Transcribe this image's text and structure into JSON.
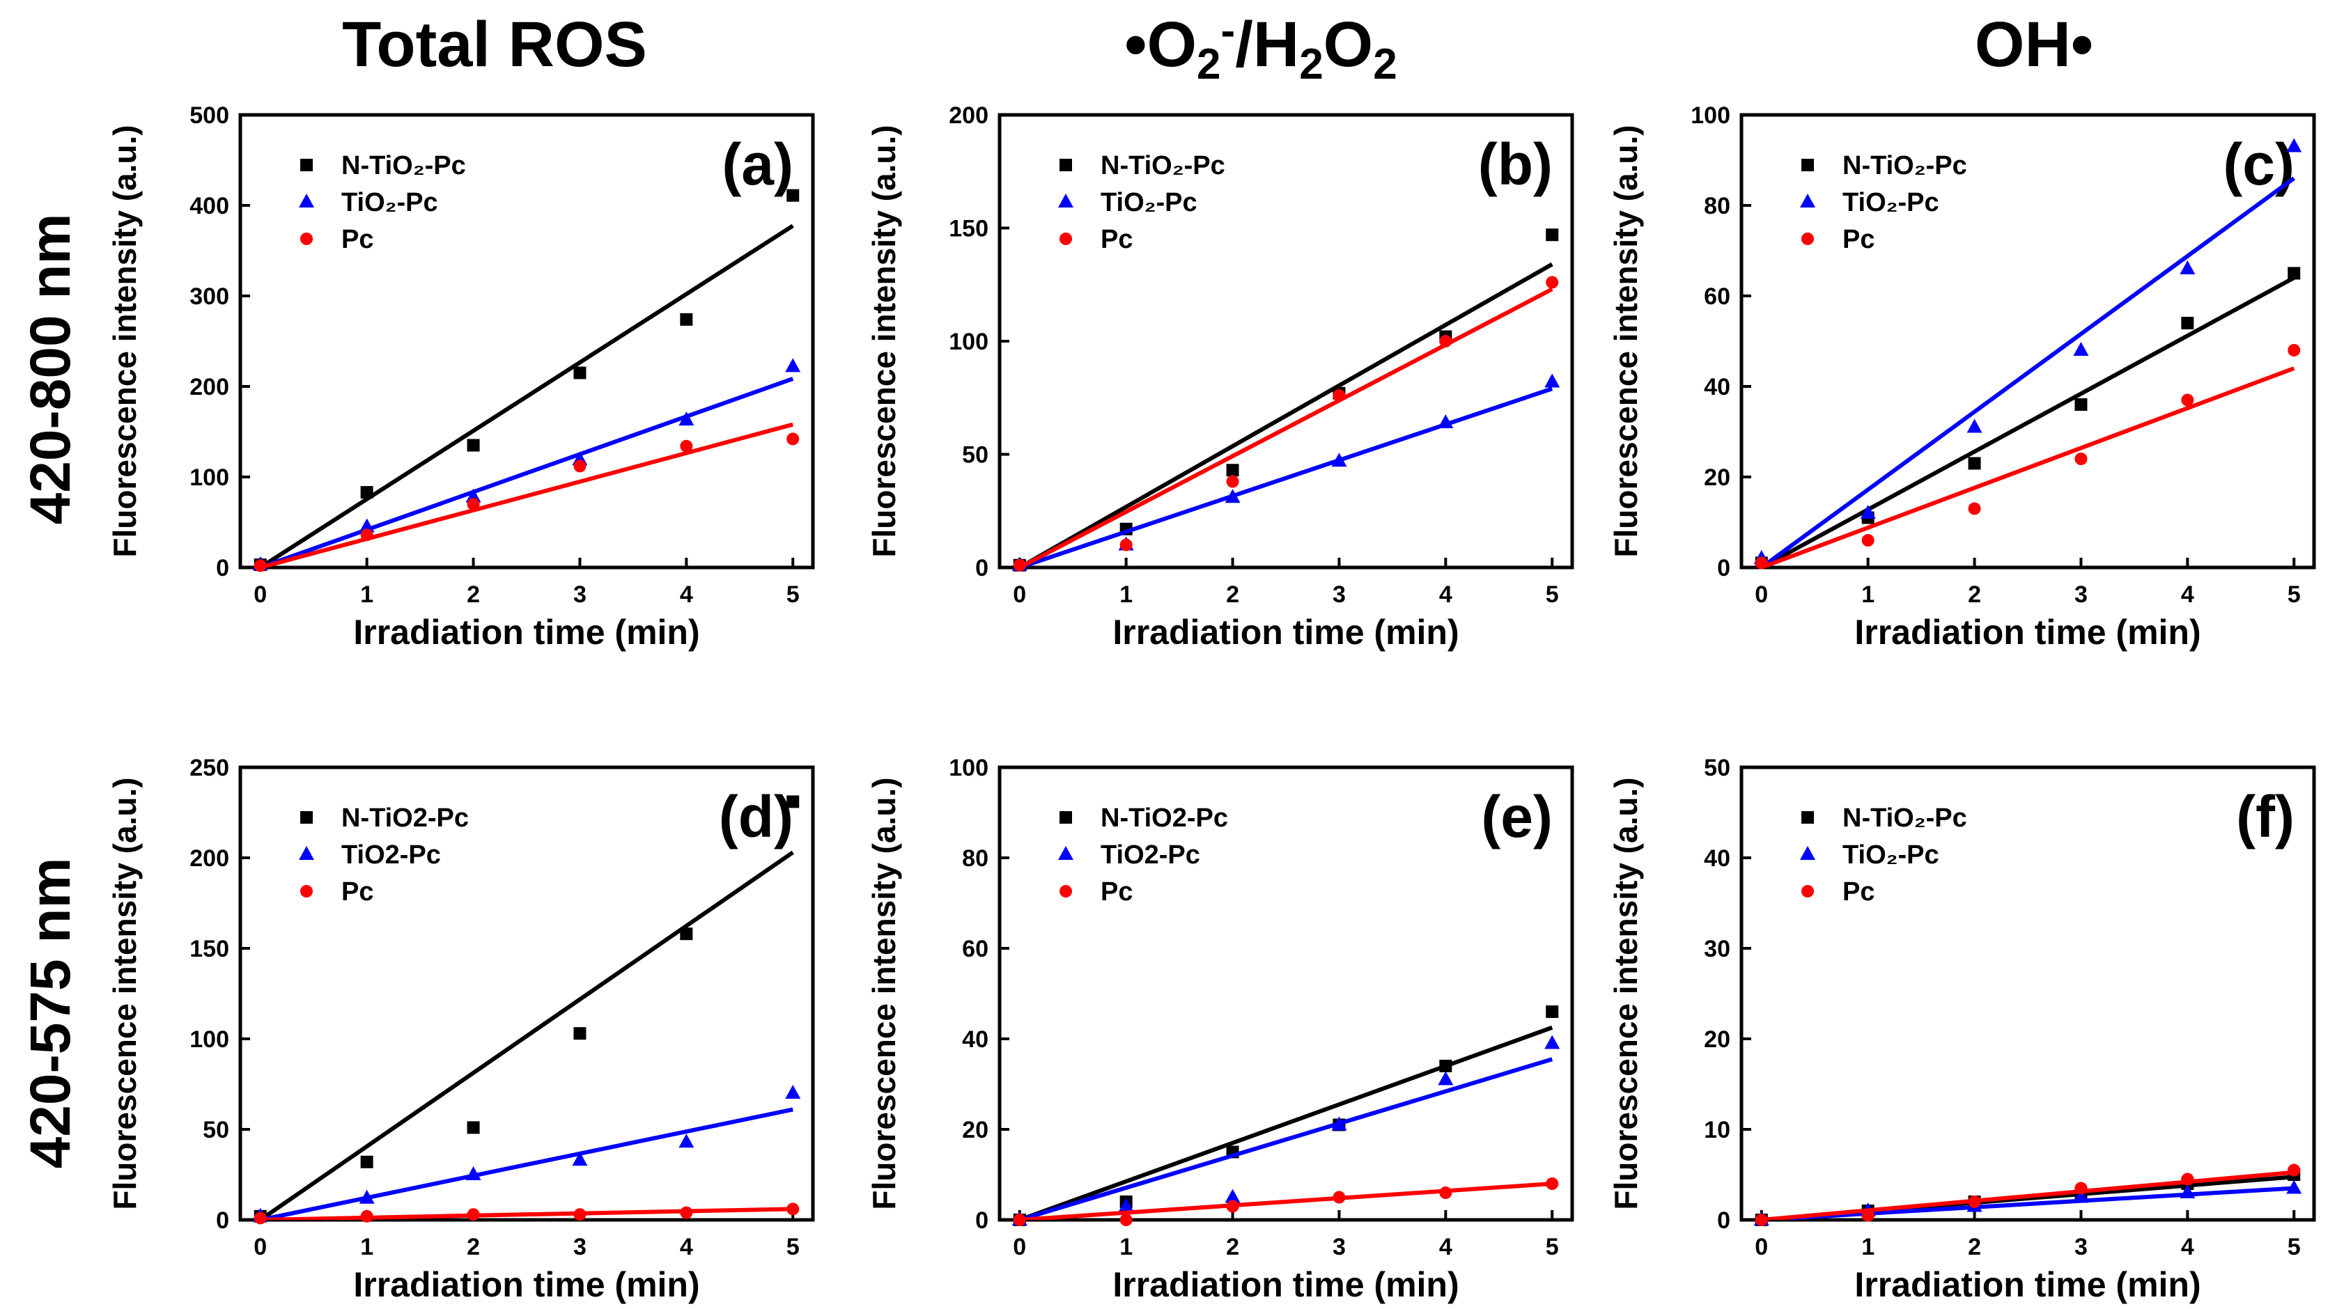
{
  "figure": {
    "column_titles": [
      "Total ROS",
      "•O2-/H2O2",
      "OH•"
    ],
    "row_titles": [
      "420-800 nm",
      "420-575 nm"
    ]
  },
  "colors": {
    "N-TiO2-Pc": "#000000",
    "TiO2-Pc": "#0000ff",
    "Pc": "#ff0000"
  },
  "chart_data": [
    {
      "type": "scatter",
      "panel_label": "(a)",
      "xlabel": "Irradiation time (min)",
      "ylabel": "Fluorescence intensity (a.u.)",
      "xlim": [
        0,
        5
      ],
      "ylim": [
        0,
        500
      ],
      "xticks": [
        "0",
        "1",
        "2",
        "3",
        "4",
        "5"
      ],
      "yticks": [
        "0",
        "100",
        "200",
        "300",
        "400",
        "500"
      ],
      "x": [
        0,
        1,
        2,
        3,
        4,
        5
      ],
      "series": [
        {
          "name": "N-TiO₂-Pc",
          "key": "N-TiO2-Pc",
          "marker": "square",
          "values": [
            3,
            83,
            135,
            215,
            274,
            411
          ],
          "fit_slope": 75.5
        },
        {
          "name": "TiO₂-Pc",
          "key": "TiO2-Pc",
          "marker": "triangle",
          "values": [
            3,
            45,
            78,
            119,
            163,
            222
          ],
          "fit_slope": 41.7
        },
        {
          "name": "Pc",
          "key": "Pc",
          "marker": "circle",
          "values": [
            2,
            36,
            70,
            112,
            134,
            142
          ],
          "fit_slope": 31.6
        }
      ]
    },
    {
      "type": "scatter",
      "panel_label": "(b)",
      "xlabel": "Irradiation time (min)",
      "ylabel": "Fluorescence intensity (a.u.)",
      "xlim": [
        0,
        5
      ],
      "ylim": [
        0,
        200
      ],
      "xticks": [
        "0",
        "1",
        "2",
        "3",
        "4",
        "5"
      ],
      "yticks": [
        "0",
        "50",
        "100",
        "150",
        "200"
      ],
      "x": [
        0,
        1,
        2,
        3,
        4,
        5
      ],
      "series": [
        {
          "name": "N-TiO₂-Pc",
          "key": "N-TiO2-Pc",
          "marker": "square",
          "values": [
            1,
            17,
            43,
            77,
            102,
            147
          ],
          "fit_slope": 26.8
        },
        {
          "name": "TiO₂-Pc",
          "key": "TiO2-Pc",
          "marker": "triangle",
          "values": [
            1,
            10,
            31,
            47,
            64,
            82
          ],
          "fit_slope": 15.8
        },
        {
          "name": "Pc",
          "key": "Pc",
          "marker": "circle",
          "values": [
            1,
            10,
            38,
            76,
            100,
            126
          ],
          "fit_slope": 24.6
        }
      ]
    },
    {
      "type": "scatter",
      "panel_label": "(c)",
      "xlabel": "Irradiation time (min)",
      "ylabel": "Fluorescence intensity (a.u.)",
      "xlim": [
        0,
        5
      ],
      "ylim": [
        0,
        100
      ],
      "xticks": [
        "0",
        "1",
        "2",
        "3",
        "4",
        "5"
      ],
      "yticks": [
        "0",
        "20",
        "40",
        "60",
        "80",
        "100"
      ],
      "x": [
        0,
        1,
        2,
        3,
        4,
        5
      ],
      "series": [
        {
          "name": "N-TiO₂-Pc",
          "key": "N-TiO2-Pc",
          "marker": "square",
          "values": [
            1,
            11,
            23,
            36,
            54,
            65
          ],
          "fit_slope": 12.8
        },
        {
          "name": "TiO₂-Pc",
          "key": "TiO2-Pc",
          "marker": "triangle",
          "values": [
            2,
            12,
            31,
            48,
            66,
            93
          ],
          "fit_slope": 17.2
        },
        {
          "name": "Pc",
          "key": "Pc",
          "marker": "circle",
          "values": [
            1,
            6,
            13,
            24,
            37,
            48
          ],
          "fit_slope": 8.8
        }
      ]
    },
    {
      "type": "scatter",
      "panel_label": "(d)",
      "xlabel": "Irradiation time (min)",
      "ylabel": "Fluorescence intensity (a.u.)",
      "xlim": [
        0,
        5
      ],
      "ylim": [
        0,
        250
      ],
      "xticks": [
        "0",
        "1",
        "2",
        "3",
        "4",
        "5"
      ],
      "yticks": [
        "0",
        "50",
        "100",
        "150",
        "200",
        "250"
      ],
      "x": [
        0,
        1,
        2,
        3,
        4,
        5
      ],
      "series": [
        {
          "name": "N-TiO2-Pc",
          "key": "N-TiO2-Pc",
          "marker": "square",
          "values": [
            2,
            32,
            51,
            103,
            158,
            231
          ],
          "fit_slope": 40.6
        },
        {
          "name": "TiO2-Pc",
          "key": "TiO2-Pc",
          "marker": "triangle",
          "values": [
            2,
            12,
            25,
            33,
            43,
            70
          ],
          "fit_slope": 12.2
        },
        {
          "name": "Pc",
          "key": "Pc",
          "marker": "circle",
          "values": [
            1,
            2,
            3,
            3,
            4,
            6
          ],
          "fit_slope": 1.2
        }
      ]
    },
    {
      "type": "scatter",
      "panel_label": "(e)",
      "xlabel": "Irradiation time (min)",
      "ylabel": "Fluorescence intensity (a.u.)",
      "xlim": [
        0,
        5
      ],
      "ylim": [
        0,
        100
      ],
      "xticks": [
        "0",
        "1",
        "2",
        "3",
        "4",
        "5"
      ],
      "yticks": [
        "0",
        "20",
        "40",
        "60",
        "80",
        "100"
      ],
      "x": [
        0,
        1,
        2,
        3,
        4,
        5
      ],
      "series": [
        {
          "name": "N-TiO2-Pc",
          "key": "N-TiO2-Pc",
          "marker": "square",
          "values": [
            0,
            4,
            15,
            21,
            34,
            46
          ],
          "fit_slope": 8.5
        },
        {
          "name": "TiO2-Pc",
          "key": "TiO2-Pc",
          "marker": "triangle",
          "values": [
            0,
            3,
            5,
            21,
            31,
            39
          ],
          "fit_slope": 7.1
        },
        {
          "name": "Pc",
          "key": "Pc",
          "marker": "circle",
          "values": [
            0,
            0,
            3,
            5,
            6,
            8
          ],
          "fit_slope": 1.6
        }
      ]
    },
    {
      "type": "scatter",
      "panel_label": "(f)",
      "xlabel": "Irradiation time (min)",
      "ylabel": "Fluorescence intensity (a.u.)",
      "xlim": [
        0,
        5
      ],
      "ylim": [
        0,
        50
      ],
      "xticks": [
        "0",
        "1",
        "2",
        "3",
        "4",
        "5"
      ],
      "yticks": [
        "0",
        "10",
        "20",
        "30",
        "40",
        "50"
      ],
      "x": [
        0,
        1,
        2,
        3,
        4,
        5
      ],
      "series": [
        {
          "name": "N-TiO₂-Pc",
          "key": "N-TiO2-Pc",
          "marker": "square",
          "values": [
            0,
            1,
            2,
            3,
            4,
            5
          ],
          "fit_slope": 0.95
        },
        {
          "name": "TiO₂-Pc",
          "key": "TiO2-Pc",
          "marker": "triangle",
          "values": [
            0,
            1,
            1.5,
            2.5,
            3,
            3.5
          ],
          "fit_slope": 0.7
        },
        {
          "name": "Pc",
          "key": "Pc",
          "marker": "circle",
          "values": [
            0,
            0.5,
            2,
            3.5,
            4.5,
            5.5
          ],
          "fit_slope": 1.05
        }
      ]
    }
  ]
}
